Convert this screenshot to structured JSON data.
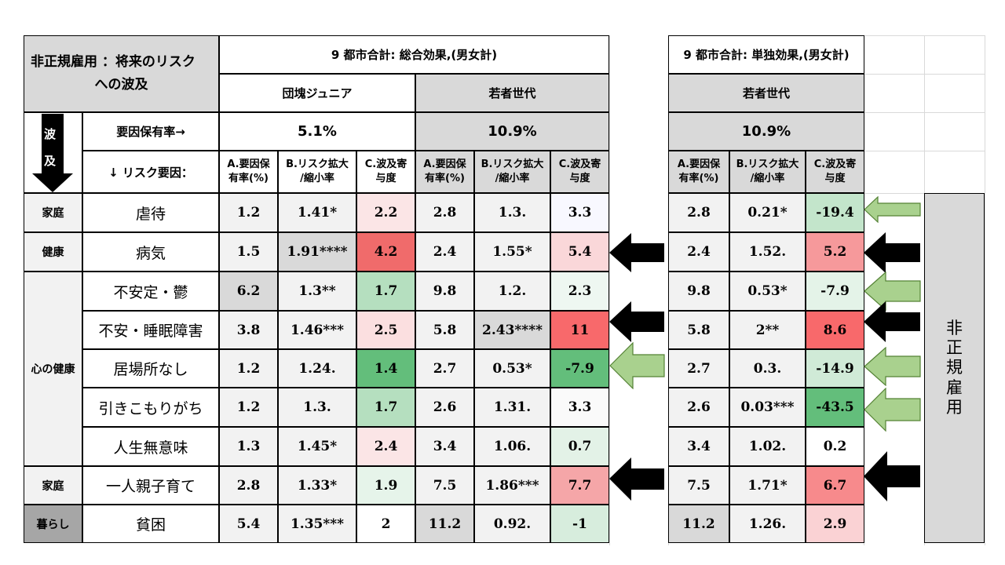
{
  "title": {
    "line1": "非正規雇用 ：将来のリスク",
    "line2": "への波及"
  },
  "sections": {
    "total": "9 都市合計: 総合効果,(男女計)",
    "single": "9 都市合計: 単独効果,(男女計)"
  },
  "generations": {
    "junior": "団塊ジュニア",
    "young": "若者世代",
    "young_single": "若者世代"
  },
  "ripple": {
    "top": "波",
    "bottom": "及"
  },
  "factor_rate_label": "要因保有率→",
  "risk_factor_label": "↓ リスク要因：",
  "rates": {
    "junior": "5.1%",
    "young": "10.9%",
    "young_single": "10.9%"
  },
  "col_headers": {
    "a": [
      "A.要因保",
      "有率(%)"
    ],
    "b": [
      "B.リスク拡大",
      "/縮小率"
    ],
    "c": [
      "C.波及寄",
      "与度"
    ]
  },
  "categories": {
    "family1": "家庭",
    "health": "健康",
    "mental": "心の健康",
    "family2": "家庭",
    "living": "暮らし"
  },
  "side_label": [
    "非",
    "正",
    "規",
    "雇",
    "用"
  ],
  "rows": [
    {
      "label": "虐待",
      "junior": [
        "1.2",
        "1.41*",
        "2.2"
      ],
      "young": [
        "2.8",
        "1.3.",
        "3.3"
      ],
      "single": [
        "2.8",
        "0.21*",
        "-19.4"
      ]
    },
    {
      "label": "病気",
      "junior": [
        "1.5",
        "1.91****",
        "4.2"
      ],
      "young": [
        "2.4",
        "1.55*",
        "5.4"
      ],
      "single": [
        "2.4",
        "1.52.",
        "5.2"
      ]
    },
    {
      "label": "不安定・鬱",
      "junior": [
        "6.2",
        "1.3**",
        "1.7"
      ],
      "young": [
        "9.8",
        "1.2.",
        "2.3"
      ],
      "single": [
        "9.8",
        "0.53*",
        "-7.9"
      ]
    },
    {
      "label": "不安・睡眠障害",
      "junior": [
        "3.8",
        "1.46***",
        "2.5"
      ],
      "young": [
        "5.8",
        "2.43****",
        "11"
      ],
      "single": [
        "5.8",
        "2**",
        "8.6"
      ]
    },
    {
      "label": "居場所なし",
      "junior": [
        "1.2",
        "1.24.",
        "1.4"
      ],
      "young": [
        "2.7",
        "0.53*",
        "-7.9"
      ],
      "single": [
        "2.7",
        "0.3.",
        "-14.9"
      ]
    },
    {
      "label": "引きこもりがち",
      "junior": [
        "1.2",
        "1.3.",
        "1.7"
      ],
      "young": [
        "2.6",
        "1.31.",
        "3.3"
      ],
      "single": [
        "2.6",
        "0.03***",
        "-43.5"
      ]
    },
    {
      "label": "人生無意味",
      "junior": [
        "1.3",
        "1.45*",
        "2.4"
      ],
      "young": [
        "3.4",
        "1.06.",
        "0.7"
      ],
      "single": [
        "3.4",
        "1.02.",
        "0.2"
      ]
    },
    {
      "label": "一人親子育て",
      "junior": [
        "2.8",
        "1.33*",
        "1.9"
      ],
      "young": [
        "7.5",
        "1.86***",
        "7.7"
      ],
      "single": [
        "7.5",
        "1.71*",
        "6.7"
      ]
    },
    {
      "label": "貧困",
      "junior": [
        "5.4",
        "1.35***",
        "2"
      ],
      "young": [
        "11.2",
        "0.92.",
        "-1"
      ],
      "single": [
        "11.2",
        "1.26.",
        "2.9"
      ]
    }
  ],
  "colors": {
    "header_grey": "#d9d9d9",
    "cell_light": "#f2f2f2",
    "cell_mid": "#d9d9d9",
    "living_grey": "#a6a6a6",
    "arrow_green": "#a9d18e",
    "arrow_black": "#000000"
  }
}
